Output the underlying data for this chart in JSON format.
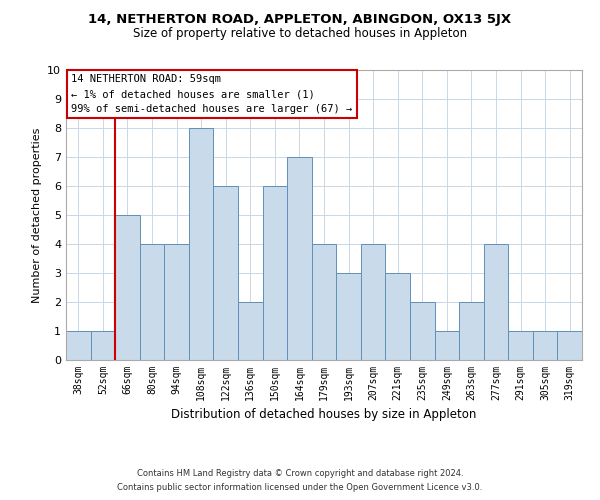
{
  "title1": "14, NETHERTON ROAD, APPLETON, ABINGDON, OX13 5JX",
  "title2": "Size of property relative to detached houses in Appleton",
  "xlabel": "Distribution of detached houses by size in Appleton",
  "ylabel": "Number of detached properties",
  "categories": [
    "38sqm",
    "52sqm",
    "66sqm",
    "80sqm",
    "94sqm",
    "108sqm",
    "122sqm",
    "136sqm",
    "150sqm",
    "164sqm",
    "179sqm",
    "193sqm",
    "207sqm",
    "221sqm",
    "235sqm",
    "249sqm",
    "263sqm",
    "277sqm",
    "291sqm",
    "305sqm",
    "319sqm"
  ],
  "values": [
    1,
    1,
    5,
    4,
    4,
    8,
    6,
    2,
    6,
    7,
    4,
    3,
    4,
    3,
    2,
    1,
    2,
    4,
    1,
    1,
    1
  ],
  "bar_color": "#c9daea",
  "bar_edge_color": "#6090b8",
  "subject_line_color": "#cc0000",
  "annotation_text": "14 NETHERTON ROAD: 59sqm\n← 1% of detached houses are smaller (1)\n99% of semi-detached houses are larger (67) →",
  "annotation_box_color": "#cc0000",
  "footer1": "Contains HM Land Registry data © Crown copyright and database right 2024.",
  "footer2": "Contains public sector information licensed under the Open Government Licence v3.0.",
  "ylim": [
    0,
    10
  ],
  "yticks": [
    0,
    1,
    2,
    3,
    4,
    5,
    6,
    7,
    8,
    9,
    10
  ],
  "background_color": "#ffffff",
  "grid_color": "#c8d8e8"
}
